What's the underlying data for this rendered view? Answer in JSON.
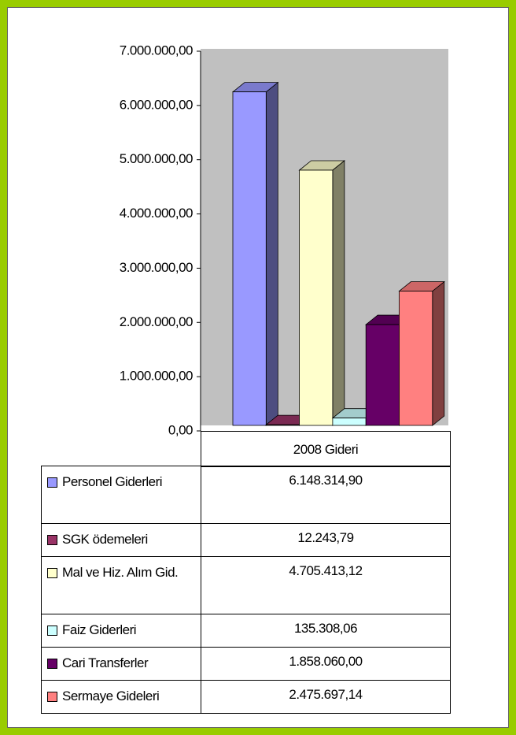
{
  "chart_data": {
    "type": "bar",
    "categories": [
      "2008 Gideri"
    ],
    "series": [
      {
        "name": "Personel Giderleri",
        "color": "#9999ff",
        "values": [
          6148314.9
        ],
        "value_labels": [
          "6.148.314,90"
        ]
      },
      {
        "name": "SGK ödemeleri",
        "color": "#993366",
        "values": [
          12243.79
        ],
        "value_labels": [
          "12.243,79"
        ]
      },
      {
        "name": "Mal ve Hiz. Alım Gid.",
        "color": "#ffffcc",
        "values": [
          4705413.12
        ],
        "value_labels": [
          "4.705.413,12"
        ]
      },
      {
        "name": "Faiz Giderleri",
        "color": "#ccffff",
        "values": [
          135308.06
        ],
        "value_labels": [
          "135.308,06"
        ]
      },
      {
        "name": "Cari Transferler",
        "color": "#660066",
        "values": [
          1858060.0
        ],
        "value_labels": [
          "1.858.060,00"
        ]
      },
      {
        "name": "Sermaye Gideleri",
        "color": "#ff8080",
        "values": [
          2475697.14
        ],
        "value_labels": [
          "2.475.697,14"
        ]
      }
    ],
    "ylim": [
      0,
      7000000
    ],
    "yticks": [
      {
        "value": 0,
        "label": "0,00"
      },
      {
        "value": 1000000,
        "label": "1.000.000,00"
      },
      {
        "value": 2000000,
        "label": "2.000.000,00"
      },
      {
        "value": 3000000,
        "label": "3.000.000,00"
      },
      {
        "value": 4000000,
        "label": "4.000.000,00"
      },
      {
        "value": 5000000,
        "label": "5.000.000,00"
      },
      {
        "value": 6000000,
        "label": "6.000.000,00"
      },
      {
        "value": 7000000,
        "label": "7.000.000,00"
      }
    ],
    "legend": "table"
  }
}
